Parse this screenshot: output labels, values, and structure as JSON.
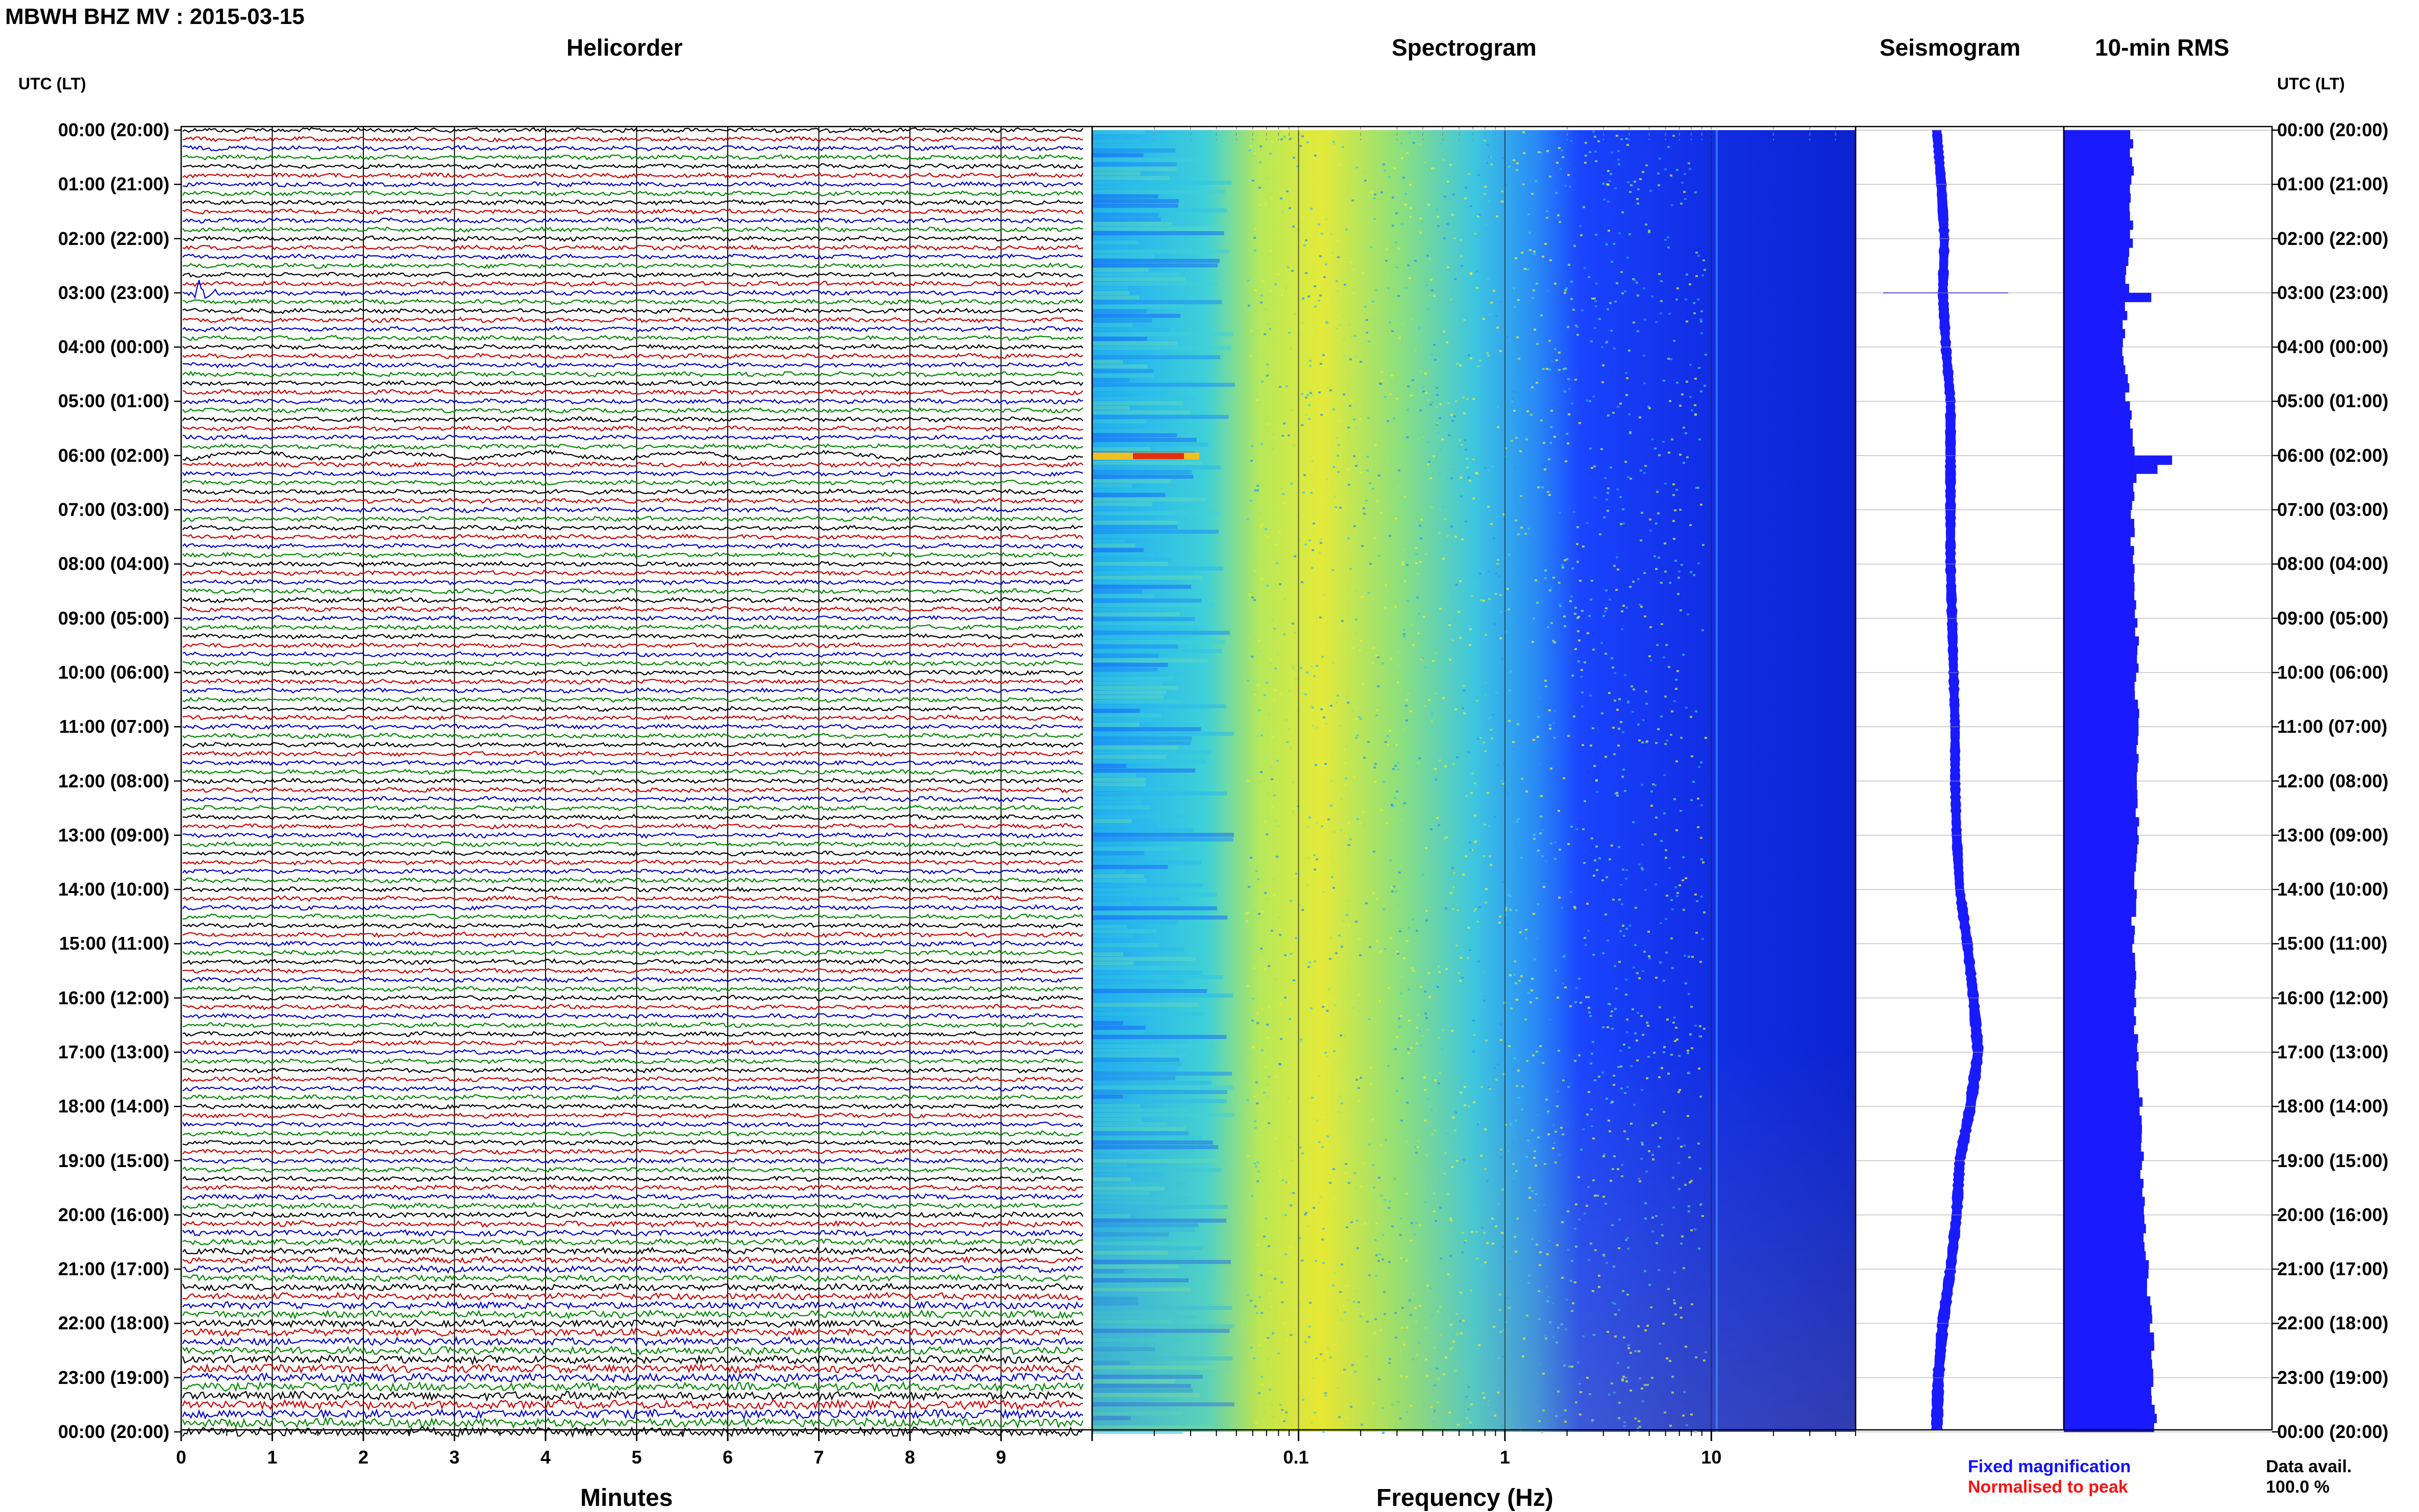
{
  "title": "MBWH BHZ MV : 2015-03-15",
  "panels": {
    "helicorder": "Helicorder",
    "spectrogram": "Spectrogram",
    "seismogram": "Seismogram",
    "rms": "10-min RMS"
  },
  "left_axis_label": "UTC (LT)",
  "right_axis_label": "UTC (LT)",
  "legend": {
    "fixed": "Fixed magnification",
    "normalised": "Normalised to peak",
    "fixed_color": "#1010ff",
    "normalised_color": "#ff1010"
  },
  "data_avail": {
    "label": "Data avail.",
    "value": "100.0 %"
  },
  "chart_data": [
    {
      "type": "line",
      "panel": "helicorder",
      "title": "Helicorder",
      "xlabel": "Minutes",
      "xlim": [
        0,
        10
      ],
      "x_ticks": [
        "0",
        "1",
        "2",
        "3",
        "4",
        "5",
        "6",
        "7",
        "8",
        "9"
      ],
      "y_ticks": [
        "00:00 (20:00)",
        "01:00 (21:00)",
        "02:00 (22:00)",
        "03:00 (23:00)",
        "04:00 (00:00)",
        "05:00 (01:00)",
        "06:00 (02:00)",
        "07:00 (03:00)",
        "08:00 (04:00)",
        "09:00 (05:00)",
        "10:00 (06:00)",
        "11:00 (07:00)",
        "12:00 (08:00)",
        "13:00 (09:00)",
        "14:00 (10:00)",
        "15:00 (11:00)",
        "16:00 (12:00)",
        "17:00 (13:00)",
        "18:00 (14:00)",
        "19:00 (15:00)",
        "20:00 (16:00)",
        "21:00 (17:00)",
        "22:00 (18:00)",
        "23:00 (19:00)",
        "00:00 (20:00)"
      ],
      "trace_colors": [
        "#000000",
        "#d10000",
        "#0000d0",
        "#008800"
      ],
      "lines_per_hour": 6,
      "events": [
        {
          "hour": 3.0,
          "minute": 0.2,
          "amplitude": "large"
        },
        {
          "hour": 6.0,
          "minute": 0,
          "amplitude": "long-period wobble"
        }
      ],
      "grid": true
    },
    {
      "type": "heatmap",
      "panel": "spectrogram",
      "title": "Spectrogram",
      "xlabel": "Frequency (Hz)",
      "x_scale": "log",
      "xlim": [
        0.01,
        50
      ],
      "x_ticks": [
        "0.1",
        "1",
        "10"
      ],
      "ylim_hours": [
        0,
        24
      ],
      "colormap": [
        "#0b1fd6",
        "#1f55ff",
        "#25a8f5",
        "#56ddc8",
        "#e2ec3a",
        "#f0a020",
        "#e03010"
      ],
      "peak_band_hz": [
        0.15,
        0.4
      ],
      "notes": "High energy at 0.2-0.3 Hz increasing after 17:00; strong low-frequency event at 06:00"
    },
    {
      "type": "line",
      "panel": "seismogram",
      "title": "Seismogram",
      "x": [
        0,
        1,
        2,
        3,
        4,
        5,
        6,
        7,
        8,
        9,
        10,
        11,
        12,
        13,
        14,
        15,
        16,
        17,
        18,
        19,
        20,
        21,
        22,
        23,
        24
      ],
      "values": [
        0.0,
        0.3,
        0.5,
        0.4,
        0.6,
        0.9,
        0.9,
        0.9,
        0.9,
        1.0,
        1.1,
        1.2,
        1.2,
        1.3,
        1.5,
        2.0,
        2.4,
        2.7,
        2.2,
        1.5,
        1.3,
        0.9,
        0.4,
        0.1,
        0.0
      ],
      "widths": [
        0.3,
        0.3,
        0.3,
        0.3,
        0.3,
        0.3,
        0.32,
        0.3,
        0.3,
        0.3,
        0.3,
        0.3,
        0.3,
        0.3,
        0.3,
        0.32,
        0.33,
        0.35,
        0.35,
        0.33,
        0.33,
        0.33,
        0.34,
        0.35,
        0.35
      ],
      "color": "#1a1aff"
    },
    {
      "type": "bar",
      "panel": "rms",
      "title": "10-min RMS",
      "orientation": "horizontal",
      "bins": 144,
      "anchors_hour": [
        0,
        1,
        2,
        3,
        4,
        5,
        6,
        7,
        8,
        9,
        10,
        11,
        12,
        13,
        14,
        15,
        16,
        17,
        18,
        19,
        20,
        21,
        22,
        23,
        24
      ],
      "anchors_value": [
        0.32,
        0.33,
        0.32,
        0.3,
        0.29,
        0.31,
        0.36,
        0.33,
        0.33,
        0.35,
        0.35,
        0.36,
        0.36,
        0.35,
        0.34,
        0.33,
        0.35,
        0.35,
        0.37,
        0.38,
        0.38,
        0.4,
        0.42,
        0.43,
        0.44
      ],
      "spikes": [
        {
          "hour": 3.0,
          "value": 0.42
        },
        {
          "hour": 6.0,
          "value": 0.52
        },
        {
          "hour": 6.17,
          "value": 0.45
        }
      ],
      "color": "#1a1aff"
    }
  ]
}
